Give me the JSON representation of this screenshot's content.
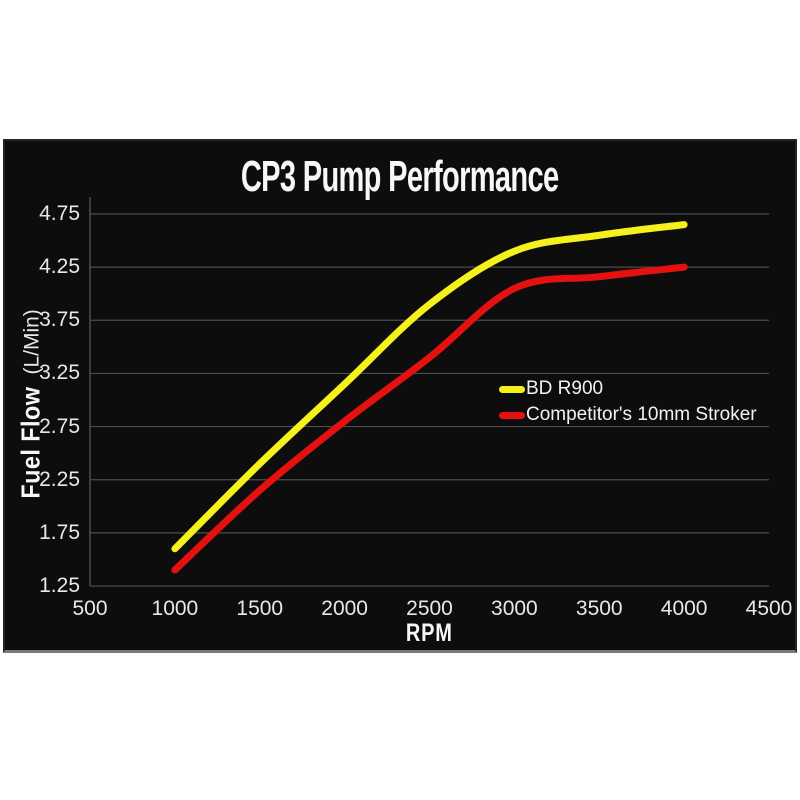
{
  "page": {
    "background": "#ffffff",
    "panel_background": "#0d0d0d"
  },
  "chart_data": {
    "type": "line",
    "title": "CP3 Pump Performance",
    "xlabel": "RPM",
    "ylabel": "Fuel Flow (L/Min)",
    "ylabel_bold": "Fuel Flow",
    "ylabel_units": "(L/Min)",
    "x": [
      1000,
      1500,
      2000,
      2500,
      3000,
      3500,
      4000
    ],
    "series": [
      {
        "name": "BD R900",
        "color": "#f4f11c",
        "values": [
          1.6,
          2.4,
          3.15,
          3.9,
          4.4,
          4.55,
          4.65
        ]
      },
      {
        "name": "Competitor's 10mm Stroker",
        "color": "#e51010",
        "values": [
          1.4,
          2.15,
          2.8,
          3.4,
          4.05,
          4.16,
          4.25
        ]
      }
    ],
    "x_ticks": [
      "500",
      "1000",
      "1500",
      "2000",
      "2500",
      "3000",
      "3500",
      "4000",
      "4500"
    ],
    "y_ticks": [
      "4.75",
      "4.25",
      "3.75",
      "3.25",
      "2.75",
      "2.25",
      "1.75",
      "1.25"
    ],
    "xlim": [
      500,
      4500
    ],
    "ylim": [
      1.25,
      4.75
    ],
    "grid": true,
    "grid_color": "#4d4d4d",
    "text_color": "#e8e8e8",
    "legend_position": "center-right",
    "line_width": 7
  }
}
